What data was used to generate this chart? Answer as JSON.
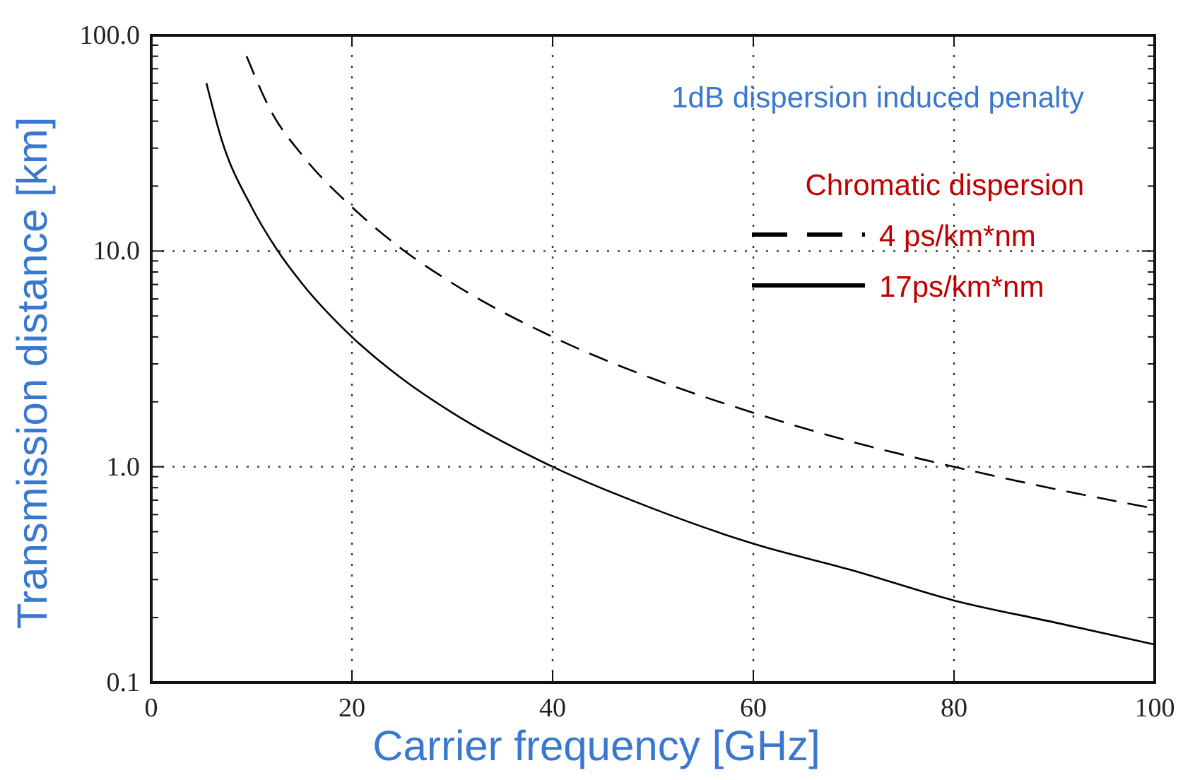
{
  "chart_data": {
    "type": "line",
    "xlabel": "Carrier frequency [GHz]",
    "ylabel": "Transmission distance [km]",
    "legend_title": "Chromatic dispersion",
    "annotations": [
      "1dB dispersion induced penalty"
    ],
    "log": "y",
    "grid": true,
    "legend": "top right",
    "xlim": [
      0,
      100
    ],
    "xticks": [
      0,
      20,
      40,
      60,
      80,
      100
    ],
    "ylim": [
      0.1,
      100
    ],
    "yticks": [
      {
        "value": 0.1,
        "label": "0.1"
      },
      {
        "value": 1,
        "label": "1.0"
      },
      {
        "value": 10,
        "label": "10.0"
      },
      {
        "value": 100,
        "label": "100.0"
      }
    ],
    "series": [
      {
        "name": "4 ps/km*nm",
        "color": "#000000",
        "line_style": "dashed",
        "x": [
          9.5,
          12,
          15,
          20,
          25,
          30,
          40,
          50,
          60,
          70,
          80,
          90,
          100
        ],
        "values": [
          80,
          44,
          28,
          16,
          10.2,
          7.1,
          4.0,
          2.56,
          1.78,
          1.3,
          1.0,
          0.79,
          0.64
        ]
      },
      {
        "name": "17ps/km*nm",
        "color": "#000000",
        "line_style": "solid",
        "x": [
          5.5,
          7,
          10,
          12.5,
          15,
          20,
          25,
          30,
          40,
          50,
          60,
          70,
          80,
          90,
          100
        ],
        "values": [
          60,
          33,
          16,
          10.2,
          7.1,
          4.0,
          2.56,
          1.78,
          1.0,
          0.64,
          0.44,
          0.33,
          0.24,
          0.19,
          0.15
        ]
      }
    ]
  }
}
